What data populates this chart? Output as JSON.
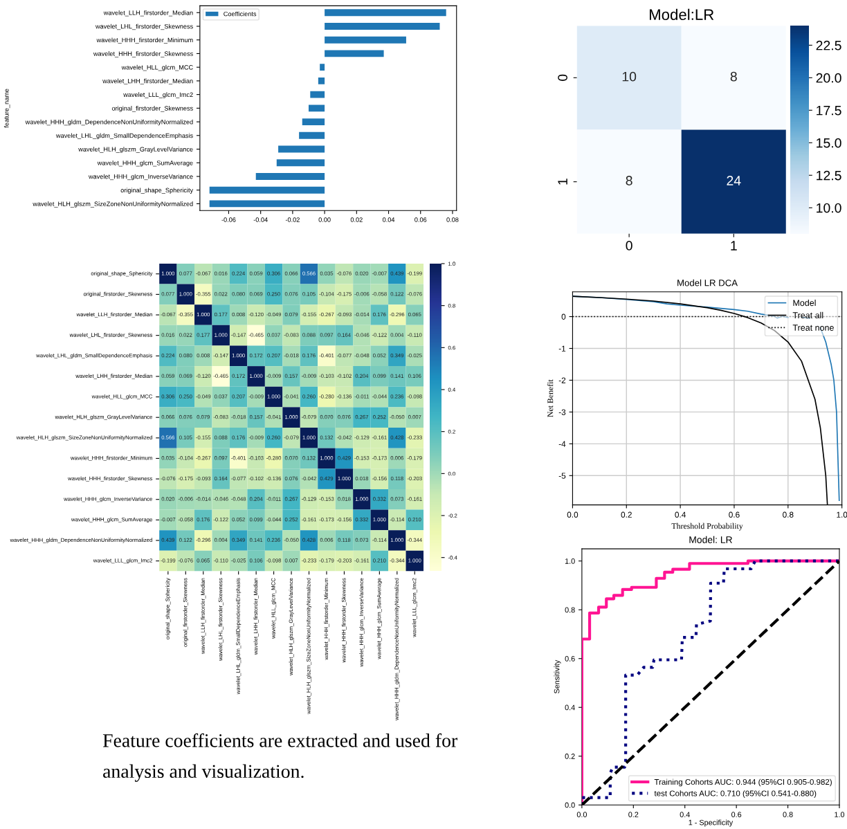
{
  "chart_data": [
    {
      "type": "bar",
      "orientation": "horizontal",
      "ylabel": "feature_name",
      "categories": [
        "wavelet_LLH_firstorder_Median",
        "wavelet_LHL_firstorder_Skewness",
        "wavelet_HHH_firstorder_Minimum",
        "wavelet_HHH_firstorder_Skewness",
        "wavelet_HLL_glcm_MCC",
        "wavelet_LHH_firstorder_Median",
        "wavelet_LLL_glcm_Imc2",
        "original_firstorder_Skewness",
        "wavelet_HHH_gldm_DependenceNonUniformityNormalized",
        "wavelet_LHL_gldm_SmallDependenceEmphasis",
        "wavelet_HLH_glszm_GrayLevelVariance",
        "wavelet_HHH_glcm_SumAverage",
        "wavelet_HHH_glcm_InverseVariance",
        "original_shape_Sphericity",
        "wavelet_HLH_glszm_SizeZoneNonUniformityNormalized"
      ],
      "series": [
        {
          "name": "Coefficients",
          "color": "#1f77b4",
          "values": [
            0.076,
            0.072,
            0.051,
            0.037,
            -0.003,
            -0.004,
            -0.009,
            -0.01,
            -0.014,
            -0.016,
            -0.029,
            -0.03,
            -0.043,
            -0.072,
            -0.072
          ]
        }
      ],
      "xlim": [
        -0.078,
        0.0825
      ],
      "xticks": [
        {
          "value": -0.06,
          "label": "-0.06"
        },
        {
          "value": -0.04,
          "label": "-0.04"
        },
        {
          "value": -0.02,
          "label": "-0.02"
        },
        {
          "value": 0,
          "label": "0.00"
        },
        {
          "value": 0.02,
          "label": "0.02"
        },
        {
          "value": 0.04,
          "label": "0.04"
        },
        {
          "value": 0.06,
          "label": "0.06"
        },
        {
          "value": 0.08,
          "label": "0.08"
        }
      ],
      "legend": "top left"
    },
    {
      "type": "heatmap",
      "title": "Model:LR",
      "categories": [
        "0",
        "1"
      ],
      "y_categories": [
        "0",
        "1"
      ],
      "cells": [
        [
          10,
          8
        ],
        [
          8,
          24
        ]
      ],
      "data_labels": true,
      "clim": [
        8,
        24
      ],
      "cticks": [
        {
          "value": 10,
          "label": "10.0"
        },
        {
          "value": 12.5,
          "label": "12.5"
        },
        {
          "value": 15,
          "label": "15.0"
        },
        {
          "value": 17.5,
          "label": "17.5"
        },
        {
          "value": 20,
          "label": "20.0"
        },
        {
          "value": 22.5,
          "label": "22.5"
        }
      ]
    },
    {
      "type": "heatmap",
      "categories": [
        "original_shape_Sphericity",
        "original_firstorder_Skewness",
        "wavelet_LLH_firstorder_Median",
        "wavelet_LHL_firstorder_Skewness",
        "wavelet_LHL_gldm_SmallDependenceEmphasis",
        "wavelet_LHH_firstorder_Median",
        "wavelet_HLL_glcm_MCC",
        "wavelet_HLH_glszm_GrayLevelVariance",
        "wavelet_HLH_glszm_SizeZoneNonUniformityNormalized",
        "wavelet_HHH_firstorder_Minimum",
        "wavelet_HHH_firstorder_Skewness",
        "wavelet_HHH_glcm_InverseVariance",
        "wavelet_HHH_glcm_SumAverage",
        "wavelet_HHH_gldm_DependenceNonUniformityNormalized",
        "wavelet_LLL_glcm_Imc2"
      ],
      "y_categories": [
        "original_shape_Sphericity",
        "original_firstorder_Skewness",
        "wavelet_LLH_firstorder_Median",
        "wavelet_LHL_firstorder_Skewness",
        "wavelet_LHL_gldm_SmallDependenceEmphasis",
        "wavelet_LHH_firstorder_Median",
        "wavelet_HLL_glcm_MCC",
        "wavelet_HLH_glszm_GrayLevelVariance",
        "wavelet_HLH_glszm_SizeZoneNonUniformityNormalized",
        "wavelet_HHH_firstorder_Minimum",
        "wavelet_HHH_firstorder_Skewness",
        "wavelet_HHH_glcm_InverseVariance",
        "wavelet_HHH_glcm_SumAverage",
        "wavelet_HHH_gldm_DependenceNonUniformityNormalized",
        "wavelet_LLL_glcm_Imc2"
      ],
      "cells": [
        [
          1.0,
          0.077,
          -0.067,
          0.016,
          0.224,
          0.059,
          0.306,
          0.066,
          0.566,
          0.035,
          -0.076,
          0.02,
          -0.007,
          0.439,
          -0.199
        ],
        [
          0.077,
          1.0,
          -0.355,
          0.022,
          0.08,
          0.069,
          0.25,
          0.076,
          0.105,
          -0.104,
          -0.175,
          -0.006,
          -0.058,
          0.122,
          -0.076
        ],
        [
          -0.067,
          -0.355,
          1.0,
          0.177,
          0.008,
          -0.12,
          -0.049,
          0.079,
          -0.155,
          -0.267,
          -0.093,
          -0.014,
          0.176,
          -0.296,
          0.065
        ],
        [
          0.016,
          0.022,
          0.177,
          1.0,
          -0.147,
          -0.465,
          0.037,
          -0.083,
          0.088,
          0.097,
          0.164,
          -0.046,
          -0.122,
          0.004,
          -0.11
        ],
        [
          0.224,
          0.08,
          0.008,
          -0.147,
          1.0,
          0.172,
          0.207,
          -0.018,
          0.176,
          -0.401,
          -0.077,
          -0.048,
          0.052,
          0.349,
          -0.025
        ],
        [
          0.059,
          0.069,
          -0.12,
          -0.465,
          0.172,
          1.0,
          -0.009,
          0.157,
          -0.009,
          -0.103,
          -0.102,
          0.204,
          0.099,
          0.141,
          0.106
        ],
        [
          0.306,
          0.25,
          -0.049,
          0.037,
          0.207,
          -0.009,
          1.0,
          -0.041,
          0.26,
          -0.28,
          -0.136,
          -0.011,
          -0.044,
          0.236,
          -0.098
        ],
        [
          0.066,
          0.076,
          0.079,
          -0.083,
          -0.018,
          0.157,
          -0.041,
          1.0,
          -0.079,
          0.07,
          0.076,
          0.267,
          0.252,
          -0.05,
          0.007
        ],
        [
          0.566,
          0.105,
          -0.155,
          0.088,
          0.176,
          -0.009,
          0.26,
          -0.079,
          1.0,
          0.132,
          -0.042,
          -0.129,
          -0.161,
          0.428,
          -0.233
        ],
        [
          0.035,
          -0.104,
          -0.267,
          0.097,
          -0.401,
          -0.103,
          -0.28,
          0.07,
          0.132,
          1.0,
          0.429,
          -0.153,
          -0.173,
          0.006,
          -0.179
        ],
        [
          -0.076,
          -0.175,
          -0.093,
          0.164,
          -0.077,
          -0.102,
          -0.136,
          0.076,
          -0.042,
          0.429,
          1.0,
          0.018,
          -0.156,
          0.118,
          -0.203
        ],
        [
          0.02,
          -0.006,
          -0.014,
          -0.046,
          -0.048,
          0.204,
          -0.011,
          0.267,
          -0.129,
          -0.153,
          0.018,
          1.0,
          0.332,
          0.073,
          -0.161
        ],
        [
          -0.007,
          -0.058,
          0.176,
          -0.122,
          0.052,
          0.099,
          -0.044,
          0.252,
          -0.161,
          -0.173,
          -0.156,
          0.332,
          1.0,
          -0.114,
          0.21
        ],
        [
          0.439,
          0.122,
          -0.296,
          0.004,
          0.349,
          0.141,
          0.236,
          -0.05,
          0.428,
          0.006,
          0.118,
          0.073,
          -0.114,
          1.0,
          -0.344
        ],
        [
          -0.199,
          -0.076,
          0.065,
          -0.11,
          -0.025,
          0.106,
          -0.098,
          0.007,
          -0.233,
          -0.179,
          -0.203,
          -0.161,
          0.21,
          -0.344,
          1.0
        ]
      ],
      "cell_labels": [
        [
          "1.000",
          "0.077",
          "-0.067",
          "0.016",
          "0.224",
          "0.059",
          "0.306",
          "0.066",
          "0.566",
          "0.035",
          "-0.076",
          "0.020",
          "-0.007",
          "0.439",
          "-0.199"
        ],
        [
          "0.077",
          "1.000",
          "-0.355",
          "0.022",
          "0.080",
          "0.069",
          "0.250",
          "0.076",
          "0.105",
          "-0.104",
          "-0.175",
          "-0.006",
          "-0.058",
          "0.122",
          "-0.076"
        ],
        [
          "-0.067",
          "-0.355",
          "1.000",
          "0.177",
          "0.008",
          "-0.120",
          "-0.049",
          "0.079",
          "-0.155",
          "-0.267",
          "-0.093",
          "-0.014",
          "0.176",
          "-0.296",
          "0.065"
        ],
        [
          "0.016",
          "0.022",
          "0.177",
          "1.000",
          "-0.147",
          "-0.465",
          "0.037",
          "-0.083",
          "0.088",
          "0.097",
          "0.164",
          "-0.046",
          "-0.122",
          "0.004",
          "-0.110"
        ],
        [
          "0.224",
          "0.080",
          "0.008",
          "-0.147",
          "1.000",
          "0.172",
          "0.207",
          "-0.018",
          "0.176",
          "-0.401",
          "-0.077",
          "-0.048",
          "0.052",
          "0.349",
          "-0.025"
        ],
        [
          "0.059",
          "0.069",
          "-0.120",
          "-0.465",
          "0.172",
          "1.000",
          "-0.009",
          "0.157",
          "-0.009",
          "-0.103",
          "-0.102",
          "0.204",
          "0.099",
          "0.141",
          "0.106"
        ],
        [
          "0.306",
          "0.250",
          "-0.049",
          "0.037",
          "0.207",
          "-0.009",
          "1.000",
          "-0.041",
          "0.260",
          "-0.280",
          "-0.136",
          "-0.011",
          "-0.044",
          "0.236",
          "-0.098"
        ],
        [
          "0.066",
          "0.076",
          "0.079",
          "-0.083",
          "-0.018",
          "0.157",
          "-0.041",
          "1.000",
          "-0.079",
          "0.070",
          "0.076",
          "0.267",
          "0.252",
          "-0.050",
          "0.007"
        ],
        [
          "0.566",
          "0.105",
          "-0.155",
          "0.088",
          "0.176",
          "-0.009",
          "0.260",
          "-0.079",
          "1.000",
          "0.132",
          "-0.042",
          "-0.129",
          "-0.161",
          "0.428",
          "-0.233"
        ],
        [
          "0.035",
          "-0.104",
          "-0.267",
          "0.097",
          "-0.401",
          "-0.103",
          "-0.280",
          "0.070",
          "0.132",
          "1.000",
          "0.429",
          "-0.153",
          "-0.173",
          "0.006",
          "-0.179"
        ],
        [
          "-0.076",
          "-0.175",
          "-0.093",
          "0.164",
          "-0.077",
          "-0.102",
          "-0.136",
          "0.076",
          "-0.042",
          "0.429",
          "1.000",
          "0.018",
          "-0.156",
          "0.118",
          "-0.203"
        ],
        [
          "0.020",
          "-0.006",
          "-0.014",
          "-0.046",
          "-0.048",
          "0.204",
          "-0.011",
          "0.267",
          "-0.129",
          "-0.153",
          "0.018",
          "1.000",
          "0.332",
          "0.073",
          "-0.161"
        ],
        [
          "-0.007",
          "-0.058",
          "0.176",
          "-0.122",
          "0.052",
          "0.099",
          "-0.044",
          "0.252",
          "-0.161",
          "-0.173",
          "-0.156",
          "0.332",
          "1.000",
          "-0.114",
          "0.210"
        ],
        [
          "0.439",
          "0.122",
          "-0.296",
          "0.004",
          "0.349",
          "0.141",
          "0.236",
          "-0.050",
          "0.428",
          "0.006",
          "0.118",
          "0.073",
          "-0.114",
          "1.000",
          "-0.344"
        ],
        [
          "-0.199",
          "-0.076",
          "0.065",
          "-0.110",
          "-0.025",
          "0.106",
          "-0.098",
          "0.007",
          "-0.233",
          "-0.179",
          "-0.203",
          "-0.161",
          "0.210",
          "-0.344",
          "1.000"
        ]
      ],
      "data_labels": true,
      "clim": [
        -0.465,
        1.0
      ],
      "cticks": [
        {
          "value": -0.4,
          "label": "-0.4"
        },
        {
          "value": -0.2,
          "label": "-0.2"
        },
        {
          "value": 0,
          "label": "0.0"
        },
        {
          "value": 0.2,
          "label": "0.2"
        },
        {
          "value": 0.4,
          "label": "0.4"
        },
        {
          "value": 0.6,
          "label": "0.6"
        },
        {
          "value": 0.8,
          "label": "0.8"
        },
        {
          "value": 1.0,
          "label": "1.0"
        }
      ]
    },
    {
      "type": "line",
      "title": "Model LR DCA",
      "xlabel": "Threshold Probability",
      "ylabel": "Net Benefit",
      "series": [
        {
          "name": "Model",
          "color": "#1f77b4",
          "x": [
            0,
            0.1,
            0.2,
            0.3,
            0.35,
            0.4,
            0.5,
            0.55,
            0.6,
            0.65,
            0.7,
            0.75,
            0.76,
            0.78,
            0.8,
            0.82,
            0.85,
            0.88,
            0.9,
            0.92,
            0.94,
            0.96,
            0.97,
            0.98,
            0.99
          ],
          "values": [
            0.64,
            0.6,
            0.54,
            0.47,
            0.4,
            0.36,
            0.3,
            0.26,
            0.22,
            0.17,
            0.08,
            0.01,
            -0.05,
            0.01,
            -0.03,
            null,
            -0.02,
            -0.05,
            null,
            -0.35,
            -0.8,
            -1.5,
            -2.0,
            -3.0,
            -5.78
          ]
        },
        {
          "name": "Treat all",
          "color": "#000000",
          "x": [
            0,
            0.1,
            0.2,
            0.3,
            0.4,
            0.5,
            0.55,
            0.6,
            0.65,
            0.7,
            0.75,
            0.8,
            0.85,
            0.9,
            0.92,
            0.94,
            0.946
          ],
          "values": [
            0.64,
            0.6,
            0.55,
            0.49,
            0.4,
            0.28,
            0.2,
            0.1,
            -0.03,
            -0.2,
            -0.44,
            -0.8,
            -1.4,
            -2.6,
            -3.5,
            -5.0,
            -5.9
          ]
        },
        {
          "name": "Treat none",
          "color": "#000000",
          "line_style": "dotted",
          "x": [
            0,
            1
          ],
          "values": [
            0,
            0
          ]
        }
      ],
      "xlim": [
        0,
        1
      ],
      "ylim": [
        -5.92,
        0.78
      ],
      "xticks": [
        {
          "value": 0,
          "label": "0.0"
        },
        {
          "value": 0.2,
          "label": "0.2"
        },
        {
          "value": 0.4,
          "label": "0.4"
        },
        {
          "value": 0.6,
          "label": "0.6"
        },
        {
          "value": 0.8,
          "label": "0.8"
        },
        {
          "value": 1,
          "label": "1.0"
        }
      ],
      "yticks": [
        {
          "value": -5,
          "label": "-5"
        },
        {
          "value": -4,
          "label": "-4"
        },
        {
          "value": -3,
          "label": "-3"
        },
        {
          "value": -2,
          "label": "-2"
        },
        {
          "value": -1,
          "label": "-1"
        },
        0
      ],
      "grid": true,
      "legend": "top right"
    },
    {
      "type": "other",
      "annotations": [
        "Feature coefficients are extracted and used for analysis and visualization."
      ]
    },
    {
      "type": "line",
      "title": "Model: LR",
      "xlabel": "1 - Specificity",
      "ylabel": "Sensitivity",
      "series": [
        {
          "name": "Training Cohorts AUC: 0.944 (95%CI 0.905-0.982)",
          "color": "#ff1493",
          "x": [
            0,
            0,
            0.03,
            0.03,
            0.065,
            0.065,
            0.095,
            0.095,
            0.124,
            0.124,
            0.158,
            0.158,
            0.193,
            0.193,
            0.289,
            0.289,
            0.321,
            0.321,
            0.353,
            0.353,
            0.418,
            0.418,
            0.645,
            0.645,
            1
          ],
          "values": [
            0,
            0.68,
            0.68,
            0.787,
            0.787,
            0.811,
            0.811,
            0.845,
            0.845,
            0.859,
            0.859,
            0.883,
            0.883,
            0.892,
            0.892,
            0.929,
            0.929,
            0.954,
            0.954,
            0.966,
            0.966,
            0.99,
            0.99,
            1.0,
            1.0
          ]
        },
        {
          "name": "test Cohorts AUC: 0.710 (95%CI 0.541-0.880)",
          "color": "#000080",
          "line_style": "dotted",
          "x": [
            0,
            0,
            0.11,
            0.11,
            0.12,
            0.166,
            0.17,
            0.17,
            0.215,
            0.225,
            0.24,
            0.275,
            0.28,
            0.387,
            0.39,
            0.443,
            0.445,
            0.499,
            0.5,
            0.55,
            0.553,
            0.657,
            0.673,
            1
          ],
          "values": [
            0,
            0.03,
            0.03,
            0.13,
            0.155,
            0.155,
            0.17,
            0.532,
            0.532,
            0.545,
            0.564,
            0.564,
            0.595,
            0.595,
            0.687,
            0.687,
            0.74,
            0.754,
            0.909,
            0.909,
            0.968,
            0.968,
            1.0,
            1.0
          ]
        },
        {
          "color": "#000000",
          "line_style": "dashed",
          "x": [
            0,
            1
          ],
          "values": [
            0,
            1
          ]
        }
      ],
      "xlim": [
        0,
        1
      ],
      "ylim": [
        0,
        1.05
      ],
      "xticks": [
        {
          "value": 0,
          "label": "0.0"
        },
        {
          "value": 0.2,
          "label": "0.2"
        },
        {
          "value": 0.4,
          "label": "0.4"
        },
        {
          "value": 0.6,
          "label": "0.6"
        },
        {
          "value": 0.8,
          "label": "0.8"
        },
        {
          "value": 1,
          "label": "1.0"
        }
      ],
      "yticks": [
        {
          "value": 0,
          "label": "0.0"
        },
        {
          "value": 0.2,
          "label": "0.2"
        },
        {
          "value": 0.4,
          "label": "0.4"
        },
        {
          "value": 0.6,
          "label": "0.6"
        },
        {
          "value": 0.8,
          "label": "0.8"
        },
        {
          "value": 1,
          "label": "1.0"
        }
      ],
      "legend": "bottom right"
    }
  ]
}
